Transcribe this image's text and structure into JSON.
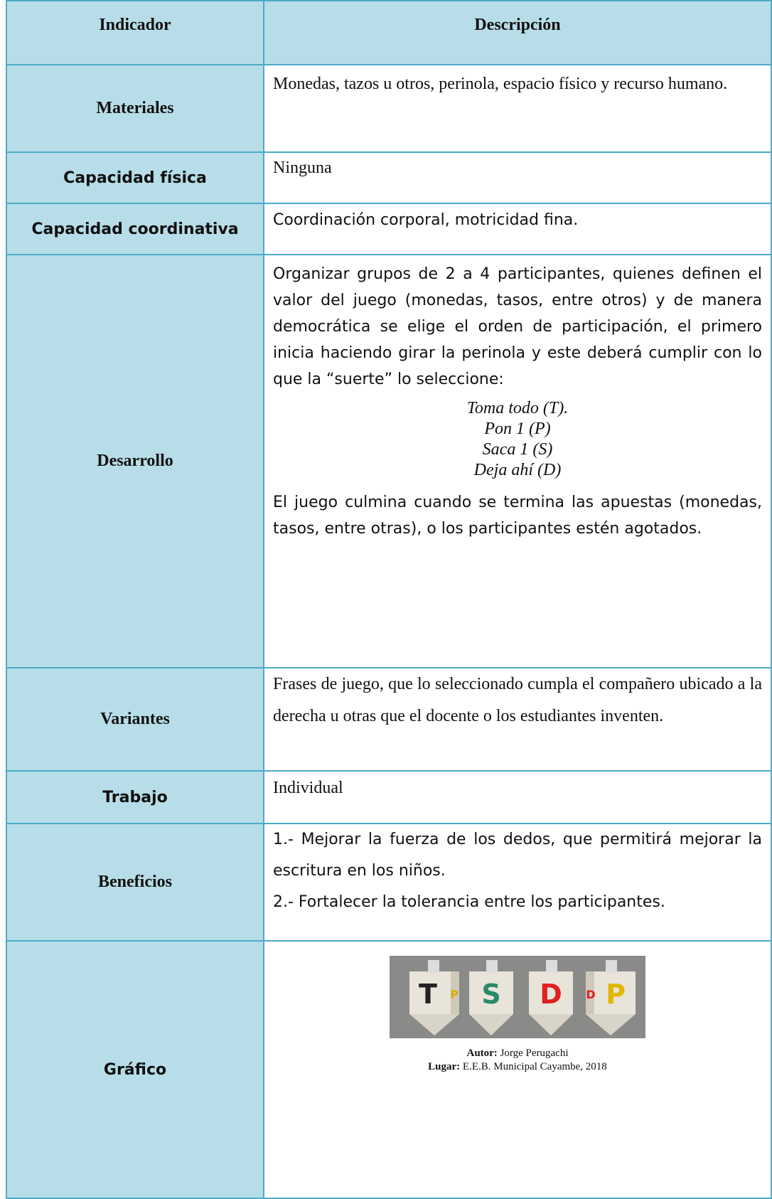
{
  "table": {
    "header": [
      "Indicador",
      "Descripción"
    ],
    "rows": [
      {
        "label": "Materiales",
        "text": [
          "Monedas, tazos u otros, perinola, espacio físico y recurso humano."
        ]
      },
      {
        "label": "Capacidad física",
        "text": [
          "Ninguna"
        ]
      },
      {
        "label": "Capacidad coordinativa",
        "text": [
          "Coordinación corporal, motricidad fina."
        ]
      },
      {
        "label": "Desarrollo",
        "text": [
          "Organizar grupos de 2 a 4 participantes, quienes definen el valor del juego (monedas, tasos, entre otros) y de manera democrática se elige el orden de participación, el primero inicia haciendo girar la perinola y este deberá cumplir con lo que la “suerte” lo seleccione:",
          "El juego culmina cuando se termina las apuestas (monedas, tasos, entre otras), o los participantes estén agotados."
        ],
        "list": [
          "Toma todo (T).",
          "Pon 1 (P)",
          "Saca 1 (S)",
          "Deja ahí (D)"
        ]
      },
      {
        "label": "Variantes",
        "text": [
          "Frases de juego, que lo seleccionado cumpla el compañero ubicado a la derecha u otras que el docente o los estudiantes inventen."
        ]
      },
      {
        "label": "Trabajo",
        "text": [
          "Individual"
        ]
      },
      {
        "label": "Beneficios",
        "text": [
          "1.- Mejorar la fuerza de los dedos, que permitirá mejorar la escritura en los niños.",
          "2.- Fortalecer la tolerancia entre los participantes."
        ]
      },
      {
        "label": "Gráfico",
        "image": {
          "letters": [
            "T",
            "P",
            "S",
            "D",
            "D",
            "P"
          ]
        },
        "caption": [
          {
            "key": "Autor:",
            "value": "Jorge Perugachi"
          },
          {
            "key": "Lugar:",
            "value": "E.E.B. Municipal Cayambe, 2018"
          }
        ]
      }
    ]
  }
}
